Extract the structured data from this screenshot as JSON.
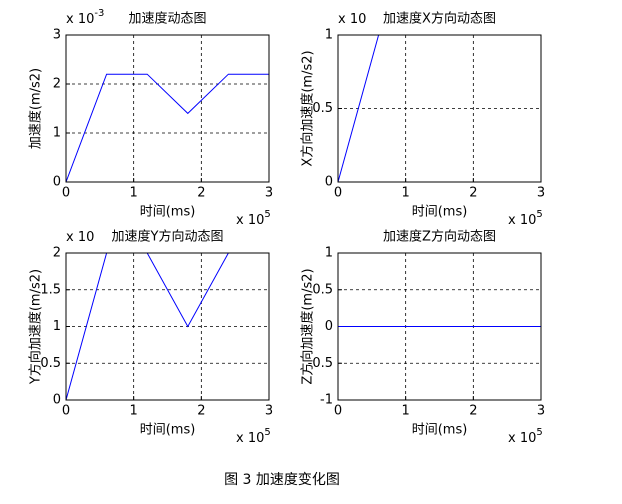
{
  "chart_data": [
    {
      "type": "line",
      "title": "加速度动态图",
      "xlabel": "时间(ms)",
      "ylabel": "加速度(m/s2)",
      "x": [
        0,
        0.6,
        1.2,
        1.8,
        2.4,
        3
      ],
      "values": [
        0,
        2.2,
        2.2,
        1.4,
        2.2,
        2.2
      ],
      "color": "#0000ff",
      "xlim": [
        0,
        3
      ],
      "xticks": [
        0,
        1,
        2,
        3
      ],
      "ylim": [
        0,
        3
      ],
      "yticks": [
        0,
        1,
        2,
        3
      ],
      "grid": true,
      "x_multiplier": {
        "base": "x 10",
        "exponent": "5"
      },
      "y_multiplier": {
        "base": "x 10",
        "exponent": "-3"
      }
    },
    {
      "type": "line",
      "title": "加速度X方向动态图",
      "xlabel": "时间(ms)",
      "ylabel": "X方向加速度(m/s2)",
      "x": [
        0,
        0.6
      ],
      "values": [
        0,
        1
      ],
      "color": "#0000ff",
      "xlim": [
        0,
        3
      ],
      "xticks": [
        0,
        1,
        2,
        3
      ],
      "ylim": [
        0,
        1
      ],
      "yticks": [
        0,
        0.5,
        1
      ],
      "grid": true,
      "x_multiplier": {
        "base": "x 10",
        "exponent": "5"
      },
      "y_multiplier": {
        "base": "x 10"
      }
    },
    {
      "type": "line",
      "title": "加速度Y方向动态图",
      "xlabel": "时间(ms)",
      "ylabel": "Y方向加速度(m/s2)",
      "x": [
        0,
        0.6,
        1.2,
        1.8,
        2.4,
        3
      ],
      "values": [
        0,
        2,
        2,
        1,
        2,
        2
      ],
      "color": "#0000ff",
      "xlim": [
        0,
        3
      ],
      "xticks": [
        0,
        1,
        2,
        3
      ],
      "ylim": [
        0,
        2
      ],
      "yticks": [
        0,
        0.5,
        1,
        1.5,
        2
      ],
      "grid": true,
      "x_multiplier": {
        "base": "x 10",
        "exponent": "5"
      },
      "y_multiplier": {
        "base": "x 10"
      }
    },
    {
      "type": "line",
      "title": "加速度Z方向动态图",
      "xlabel": "时间(ms)",
      "ylabel": "Z方向加速度(m/s2)",
      "x": [
        0,
        3
      ],
      "values": [
        0,
        0
      ],
      "color": "#0000ff",
      "xlim": [
        0,
        3
      ],
      "xticks": [
        0,
        1,
        2,
        3
      ],
      "ylim": [
        -1,
        1
      ],
      "yticks": [
        -1,
        -0.5,
        0,
        0.5,
        1
      ],
      "grid": true,
      "x_multiplier": {
        "base": "x 10",
        "exponent": "5"
      }
    }
  ],
  "caption": "图 3  加速度变化图"
}
